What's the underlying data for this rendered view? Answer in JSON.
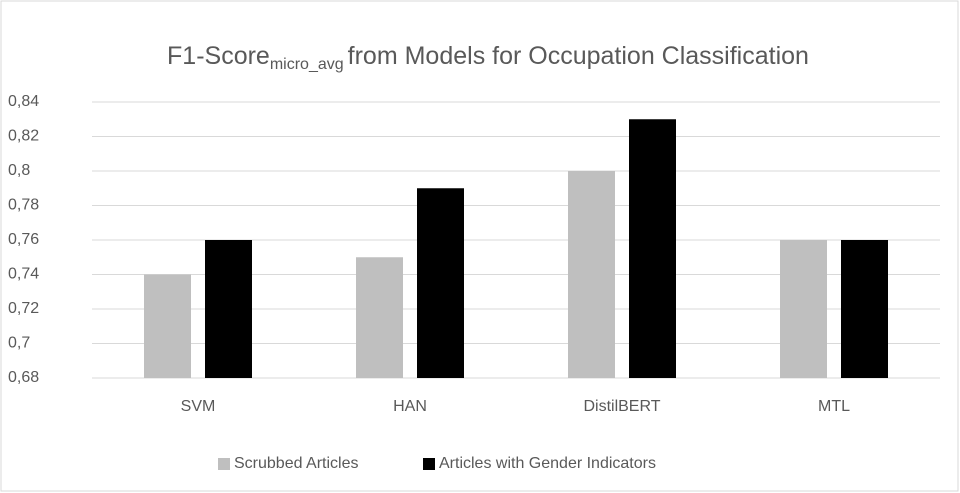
{
  "chart_data": {
    "type": "bar",
    "title": "F1-Score",
    "title_subscript": "micro_avg",
    "title_suffix": "from Models for Occupation Classification",
    "categories": [
      "SVM",
      "HAN",
      "DistilBERT",
      "MTL"
    ],
    "series": [
      {
        "name": "Scrubbed Articles",
        "color": "#bfbfbf",
        "values": [
          0.74,
          0.75,
          0.8,
          0.76
        ]
      },
      {
        "name": "Articles with Gender Indicators",
        "color": "#000000",
        "values": [
          0.76,
          0.79,
          0.83,
          0.76
        ]
      }
    ],
    "ylim": [
      0.68,
      0.84
    ],
    "yticks": [
      {
        "value": 0.68,
        "label": "0,68"
      },
      {
        "value": 0.7,
        "label": "0,7"
      },
      {
        "value": 0.72,
        "label": "0,72"
      },
      {
        "value": 0.74,
        "label": "0,74"
      },
      {
        "value": 0.76,
        "label": "0,76"
      },
      {
        "value": 0.78,
        "label": "0,78"
      },
      {
        "value": 0.8,
        "label": "0,8"
      },
      {
        "value": 0.82,
        "label": "0,82"
      },
      {
        "value": 0.84,
        "label": "0,84"
      }
    ],
    "grid": true,
    "legend": "bottom"
  }
}
